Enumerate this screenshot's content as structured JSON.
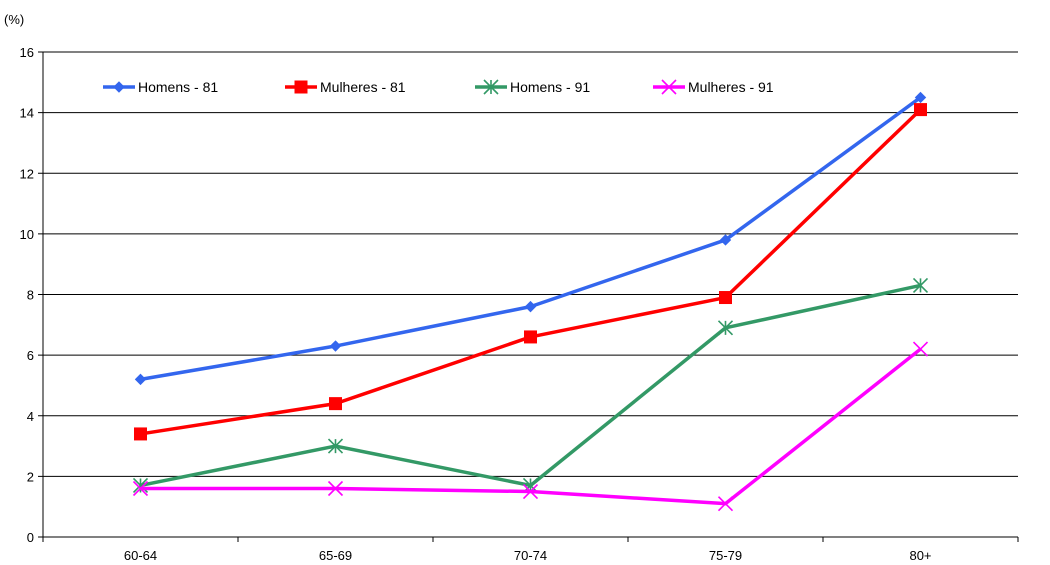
{
  "chart_data": {
    "type": "line",
    "unit_label": "(%)",
    "categories": [
      "60-64",
      "65-69",
      "70-74",
      "75-79",
      "80+"
    ],
    "ylim": [
      0,
      16
    ],
    "yticks": [
      0,
      2,
      4,
      6,
      8,
      10,
      12,
      14,
      16
    ],
    "grid": true,
    "legend_position": "top",
    "series": [
      {
        "name": "Homens - 81",
        "color": "#3366ee",
        "marker": "diamond",
        "values": [
          5.2,
          6.3,
          7.6,
          9.8,
          14.5
        ]
      },
      {
        "name": "Mulheres - 81",
        "color": "#ff0000",
        "marker": "square",
        "values": [
          3.4,
          4.4,
          6.6,
          7.9,
          14.1
        ]
      },
      {
        "name": "Homens - 91",
        "color": "#339966",
        "marker": "asterisk",
        "values": [
          1.7,
          3.0,
          1.7,
          6.9,
          8.3
        ]
      },
      {
        "name": "Mulheres - 91",
        "color": "#ff00ff",
        "marker": "cross",
        "values": [
          1.6,
          1.6,
          1.5,
          1.1,
          6.2
        ]
      }
    ]
  }
}
